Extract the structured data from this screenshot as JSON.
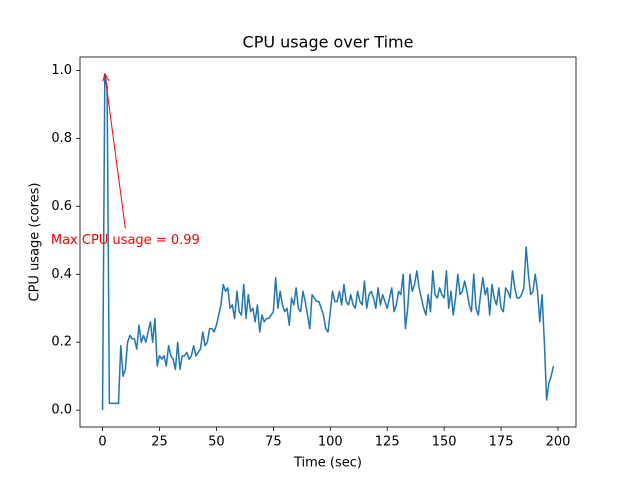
{
  "chart_data": {
    "type": "line",
    "title": "CPU usage over Time",
    "x_label": "Time (sec)",
    "y_label": "CPU usage (cores)",
    "x": [
      0,
      1,
      2,
      3,
      4,
      5,
      6,
      7,
      8,
      9,
      10,
      11,
      12,
      13,
      14,
      15,
      16,
      17,
      18,
      19,
      20,
      21,
      22,
      23,
      24,
      25,
      26,
      27,
      28,
      29,
      30,
      31,
      32,
      33,
      34,
      35,
      36,
      37,
      38,
      39,
      40,
      41,
      42,
      43,
      44,
      45,
      46,
      47,
      48,
      49,
      50,
      51,
      52,
      53,
      54,
      55,
      56,
      57,
      58,
      59,
      60,
      61,
      62,
      63,
      64,
      65,
      66,
      67,
      68,
      69,
      70,
      71,
      72,
      73,
      74,
      75,
      76,
      77,
      78,
      79,
      80,
      81,
      82,
      83,
      84,
      85,
      86,
      87,
      88,
      89,
      90,
      91,
      92,
      93,
      94,
      95,
      96,
      97,
      98,
      99,
      100,
      101,
      102,
      103,
      104,
      105,
      106,
      107,
      108,
      109,
      110,
      111,
      112,
      113,
      114,
      115,
      116,
      117,
      118,
      119,
      120,
      121,
      122,
      123,
      124,
      125,
      126,
      127,
      128,
      129,
      130,
      131,
      132,
      133,
      134,
      135,
      136,
      137,
      138,
      139,
      140,
      141,
      142,
      143,
      144,
      145,
      146,
      147,
      148,
      149,
      150,
      151,
      152,
      153,
      154,
      155,
      156,
      157,
      158,
      159,
      160,
      161,
      162,
      163,
      164,
      165,
      166,
      167,
      168,
      169,
      170,
      171,
      172,
      173,
      174,
      175,
      176,
      177,
      178,
      179,
      180,
      181,
      182,
      183,
      184,
      185,
      186,
      187,
      188,
      189,
      190,
      191,
      192,
      193,
      194,
      195,
      196,
      197,
      198
    ],
    "series": [
      {
        "name": "CPU usage",
        "color": "#1f77b4",
        "values": [
          0.0,
          0.99,
          0.95,
          0.02,
          0.02,
          0.02,
          0.02,
          0.02,
          0.19,
          0.1,
          0.12,
          0.2,
          0.22,
          0.21,
          0.21,
          0.18,
          0.25,
          0.2,
          0.22,
          0.2,
          0.23,
          0.26,
          0.2,
          0.27,
          0.13,
          0.16,
          0.15,
          0.16,
          0.13,
          0.19,
          0.16,
          0.15,
          0.12,
          0.2,
          0.12,
          0.16,
          0.16,
          0.17,
          0.15,
          0.16,
          0.19,
          0.16,
          0.17,
          0.18,
          0.23,
          0.19,
          0.2,
          0.24,
          0.24,
          0.23,
          0.25,
          0.28,
          0.31,
          0.37,
          0.35,
          0.36,
          0.3,
          0.31,
          0.27,
          0.35,
          0.29,
          0.28,
          0.37,
          0.27,
          0.34,
          0.29,
          0.3,
          0.26,
          0.31,
          0.23,
          0.28,
          0.26,
          0.27,
          0.27,
          0.28,
          0.29,
          0.39,
          0.3,
          0.35,
          0.31,
          0.29,
          0.3,
          0.25,
          0.33,
          0.31,
          0.36,
          0.3,
          0.29,
          0.35,
          0.32,
          0.28,
          0.24,
          0.34,
          0.33,
          0.32,
          0.32,
          0.3,
          0.28,
          0.24,
          0.23,
          0.29,
          0.35,
          0.32,
          0.32,
          0.35,
          0.31,
          0.37,
          0.32,
          0.31,
          0.34,
          0.31,
          0.3,
          0.35,
          0.32,
          0.31,
          0.38,
          0.3,
          0.34,
          0.35,
          0.33,
          0.3,
          0.36,
          0.31,
          0.34,
          0.32,
          0.3,
          0.33,
          0.36,
          0.29,
          0.31,
          0.35,
          0.34,
          0.4,
          0.24,
          0.3,
          0.4,
          0.35,
          0.37,
          0.41,
          0.36,
          0.33,
          0.3,
          0.28,
          0.34,
          0.29,
          0.41,
          0.34,
          0.33,
          0.36,
          0.34,
          0.33,
          0.41,
          0.3,
          0.35,
          0.28,
          0.33,
          0.4,
          0.34,
          0.35,
          0.38,
          0.35,
          0.31,
          0.29,
          0.4,
          0.3,
          0.28,
          0.34,
          0.39,
          0.34,
          0.36,
          0.28,
          0.37,
          0.33,
          0.31,
          0.36,
          0.3,
          0.29,
          0.36,
          0.35,
          0.33,
          0.41,
          0.36,
          0.33,
          0.33,
          0.34,
          0.36,
          0.48,
          0.4,
          0.34,
          0.35,
          0.4,
          0.35,
          0.26,
          0.34,
          0.2,
          0.03,
          0.08,
          0.1,
          0.13
        ]
      }
    ],
    "annotation": {
      "text": "Max CPU usage = 0.99",
      "color": "red",
      "xy": [
        1,
        0.99
      ],
      "xytext": [
        10,
        0.5
      ]
    },
    "xlim": [
      -9.9,
      207.9
    ],
    "ylim": [
      -0.0495,
      1.0395
    ],
    "xticks": [
      0,
      25,
      50,
      75,
      100,
      125,
      150,
      175,
      200
    ],
    "yticks": [
      {
        "value": 0,
        "label": "0.0"
      },
      0.2,
      0.4,
      0.6,
      0.8,
      {
        "value": 1,
        "label": "1.0"
      }
    ],
    "grid": false
  }
}
